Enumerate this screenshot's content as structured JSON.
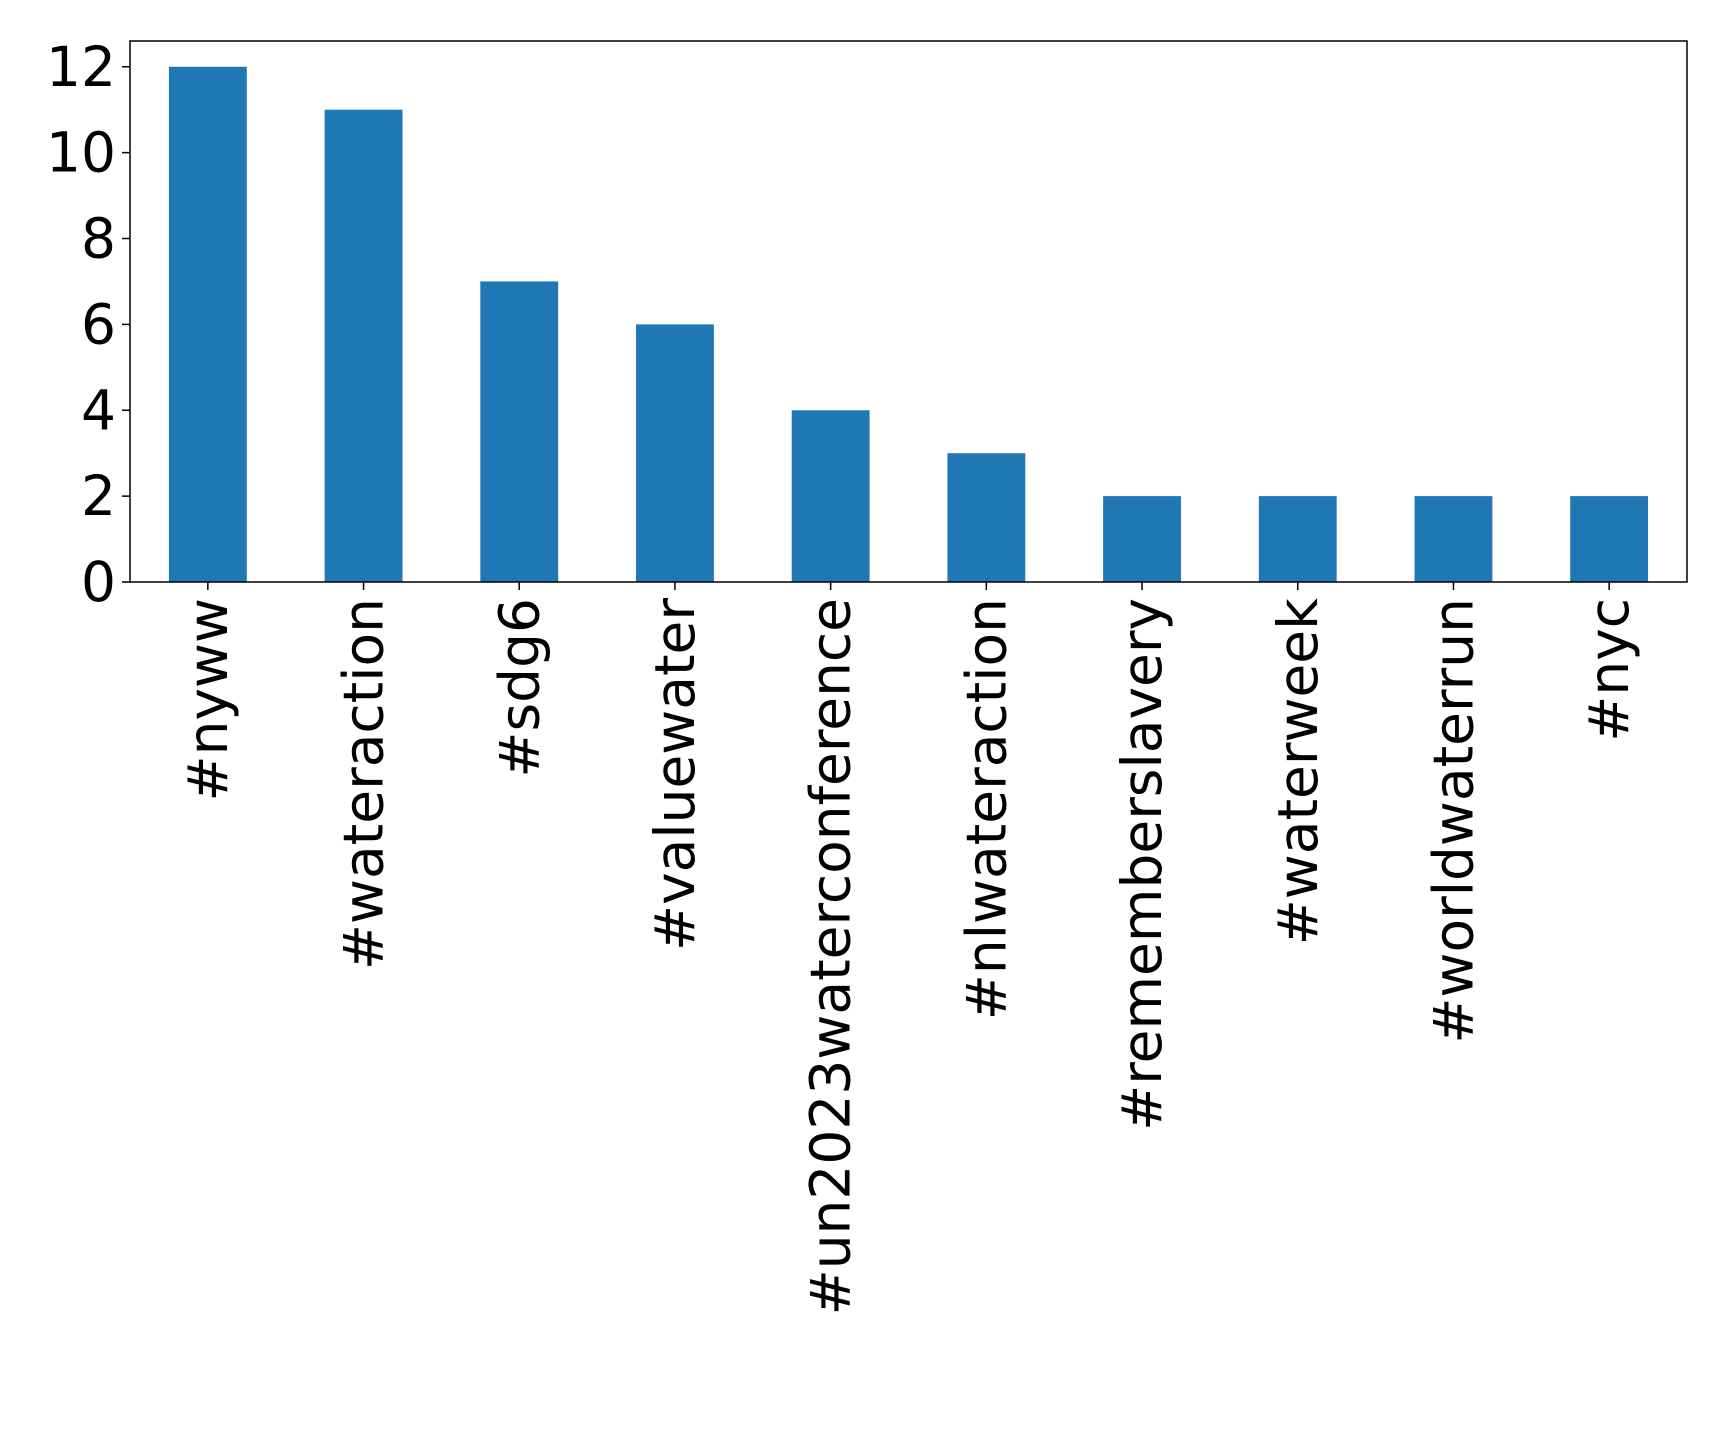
{
  "chart_data": {
    "type": "bar",
    "categories": [
      "#nyww",
      "#wateraction",
      "#sdg6",
      "#valuewater",
      "#un2023waterconference",
      "#nlwateraction",
      "#rememberslavery",
      "#waterweek",
      "#worldwaterrun",
      "#nyc"
    ],
    "values": [
      12,
      11,
      7,
      6,
      4,
      3,
      2,
      2,
      2,
      2
    ],
    "color": "#1f77b4",
    "ylim": [
      0,
      12.6
    ],
    "yticks": [
      0,
      2,
      4,
      6,
      8,
      10,
      12
    ],
    "grid": false
  }
}
